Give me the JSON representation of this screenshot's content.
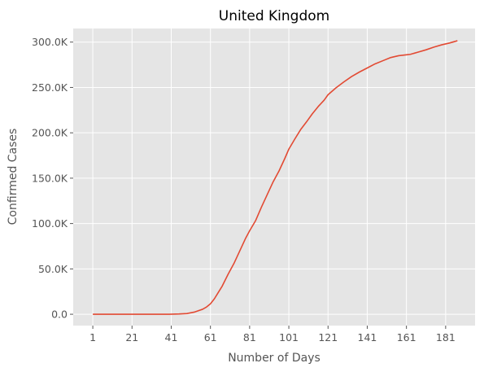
{
  "chart_data": {
    "type": "line",
    "title": "United Kingdom",
    "xlabel": "Number of Days",
    "ylabel": "Confirmed Cases",
    "xlim": [
      -9,
      196
    ],
    "ylim": [
      -12500,
      315000
    ],
    "x_ticks": [
      1,
      21,
      41,
      61,
      81,
      101,
      121,
      141,
      161,
      181
    ],
    "x_tick_labels": [
      "1",
      "21",
      "41",
      "61",
      "81",
      "101",
      "121",
      "141",
      "161",
      "181"
    ],
    "y_ticks": [
      0,
      50000,
      100000,
      150000,
      200000,
      250000,
      300000
    ],
    "y_tick_labels": [
      "0.0",
      "50.0K",
      "100.0K",
      "150.0K",
      "200.0K",
      "250.0K",
      "300.0K"
    ],
    "grid": true,
    "colors": {
      "background": "#e5e5e5",
      "grid": "#ffffff",
      "line": "#e24a33"
    },
    "series": [
      {
        "x": [
          1,
          10,
          20,
          30,
          40,
          45,
          49,
          53,
          57,
          59,
          61,
          63,
          65,
          67,
          70,
          73,
          76,
          79,
          81,
          84,
          87,
          90,
          93,
          96,
          99,
          101,
          104,
          107,
          110,
          113,
          116,
          119,
          121,
          125,
          129,
          133,
          137,
          141,
          145,
          149,
          153,
          157,
          161,
          163,
          167,
          171,
          175,
          179,
          183,
          187
        ],
        "values": [
          0,
          0,
          0,
          0,
          0,
          300,
          800,
          2500,
          5500,
          8000,
          11500,
          17000,
          24000,
          31000,
          44000,
          56000,
          70000,
          84000,
          92000,
          103000,
          118000,
          132000,
          146000,
          158000,
          172000,
          182000,
          193000,
          203500,
          212000,
          221000,
          229000,
          236000,
          242000,
          249500,
          256000,
          262000,
          267000,
          271500,
          276000,
          279500,
          283000,
          285000,
          286000,
          286500,
          289000,
          291500,
          294500,
          297000,
          299000,
          301500
        ]
      }
    ]
  }
}
